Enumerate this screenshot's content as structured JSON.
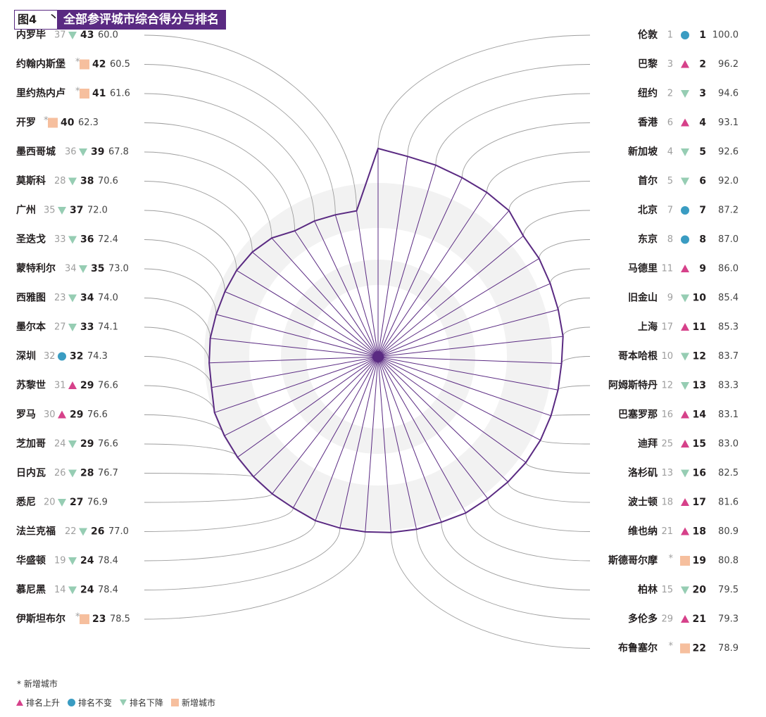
{
  "header": {
    "fig_label": "图4",
    "fig_mark": "丶",
    "title": "全部参评城市综合得分与排名"
  },
  "footnote": "* 新增城市",
  "legend": [
    {
      "key": "up",
      "label": "排名上升"
    },
    {
      "key": "same",
      "label": "排名不变"
    },
    {
      "key": "down",
      "label": "排名下降"
    },
    {
      "key": "new",
      "label": "新增城市"
    }
  ],
  "colors": {
    "up": "#d6418a",
    "same": "#3a9cc2",
    "down": "#96cdb3",
    "new": "#f6bf9e",
    "spoke": "#5a2a82",
    "leader": "#9e9e9e",
    "ring": "#f2f2f2",
    "header": "#5a2a82"
  },
  "chart_data": {
    "type": "radar",
    "title": "全部参评城市综合得分与排名",
    "columns": [
      "城市",
      "上期排名",
      "变化",
      "本期排名",
      "综合得分"
    ],
    "cities": [
      {
        "name": "伦敦",
        "prev": "1",
        "change": "same",
        "rank": "1",
        "score": 100.0
      },
      {
        "name": "巴黎",
        "prev": "3",
        "change": "up",
        "rank": "2",
        "score": 96.2
      },
      {
        "name": "纽约",
        "prev": "2",
        "change": "down",
        "rank": "3",
        "score": 94.6
      },
      {
        "name": "香港",
        "prev": "6",
        "change": "up",
        "rank": "4",
        "score": 93.1
      },
      {
        "name": "新加坡",
        "prev": "4",
        "change": "down",
        "rank": "5",
        "score": 92.6
      },
      {
        "name": "首尔",
        "prev": "5",
        "change": "down",
        "rank": "6",
        "score": 92.0
      },
      {
        "name": "北京",
        "prev": "7",
        "change": "same",
        "rank": "7",
        "score": 87.2
      },
      {
        "name": "东京",
        "prev": "8",
        "change": "same",
        "rank": "8",
        "score": 87.0
      },
      {
        "name": "马德里",
        "prev": "11",
        "change": "up",
        "rank": "9",
        "score": 86.0
      },
      {
        "name": "旧金山",
        "prev": "9",
        "change": "down",
        "rank": "10",
        "score": 85.4
      },
      {
        "name": "上海",
        "prev": "17",
        "change": "up",
        "rank": "11",
        "score": 85.3
      },
      {
        "name": "哥本哈根",
        "prev": "10",
        "change": "down",
        "rank": "12",
        "score": 83.7
      },
      {
        "name": "阿姆斯特丹",
        "prev": "12",
        "change": "down",
        "rank": "13",
        "score": 83.3
      },
      {
        "name": "巴塞罗那",
        "prev": "16",
        "change": "up",
        "rank": "14",
        "score": 83.1
      },
      {
        "name": "迪拜",
        "prev": "25",
        "change": "up",
        "rank": "15",
        "score": 83.0
      },
      {
        "name": "洛杉矶",
        "prev": "13",
        "change": "down",
        "rank": "16",
        "score": 82.5
      },
      {
        "name": "波士顿",
        "prev": "18",
        "change": "up",
        "rank": "17",
        "score": 81.6
      },
      {
        "name": "维也纳",
        "prev": "21",
        "change": "up",
        "rank": "18",
        "score": 80.9
      },
      {
        "name": "斯德哥尔摩",
        "prev": "*",
        "change": "new",
        "rank": "19",
        "score": 80.8
      },
      {
        "name": "柏林",
        "prev": "15",
        "change": "down",
        "rank": "20",
        "score": 79.5
      },
      {
        "name": "多伦多",
        "prev": "29",
        "change": "up",
        "rank": "21",
        "score": 79.3
      },
      {
        "name": "布鲁塞尔",
        "prev": "*",
        "change": "new",
        "rank": "22",
        "score": 78.9
      },
      {
        "name": "伊斯坦布尔",
        "prev": "*",
        "change": "new",
        "rank": "23",
        "score": 78.5
      },
      {
        "name": "慕尼黑",
        "prev": "14",
        "change": "down",
        "rank": "24",
        "score": 78.4
      },
      {
        "name": "华盛顿",
        "prev": "19",
        "change": "down",
        "rank": "24",
        "score": 78.4
      },
      {
        "name": "法兰克福",
        "prev": "22",
        "change": "down",
        "rank": "26",
        "score": 77.0
      },
      {
        "name": "悉尼",
        "prev": "20",
        "change": "down",
        "rank": "27",
        "score": 76.9
      },
      {
        "name": "日内瓦",
        "prev": "26",
        "change": "down",
        "rank": "28",
        "score": 76.7
      },
      {
        "name": "芝加哥",
        "prev": "24",
        "change": "down",
        "rank": "29",
        "score": 76.6
      },
      {
        "name": "罗马",
        "prev": "30",
        "change": "up",
        "rank": "29",
        "score": 76.6
      },
      {
        "name": "苏黎世",
        "prev": "31",
        "change": "up",
        "rank": "29",
        "score": 76.6
      },
      {
        "name": "深圳",
        "prev": "32",
        "change": "same",
        "rank": "32",
        "score": 74.3
      },
      {
        "name": "墨尔本",
        "prev": "27",
        "change": "down",
        "rank": "33",
        "score": 74.1
      },
      {
        "name": "西雅图",
        "prev": "23",
        "change": "down",
        "rank": "34",
        "score": 74.0
      },
      {
        "name": "蒙特利尔",
        "prev": "34",
        "change": "down",
        "rank": "35",
        "score": 73.0
      },
      {
        "name": "圣迭戈",
        "prev": "33",
        "change": "down",
        "rank": "36",
        "score": 72.4
      },
      {
        "name": "广州",
        "prev": "35",
        "change": "down",
        "rank": "37",
        "score": 72.0
      },
      {
        "name": "莫斯科",
        "prev": "28",
        "change": "down",
        "rank": "38",
        "score": 70.6
      },
      {
        "name": "墨西哥城",
        "prev": "36",
        "change": "down",
        "rank": "39",
        "score": 67.8
      },
      {
        "name": "开罗",
        "prev": "*",
        "change": "new",
        "rank": "40",
        "score": 62.3
      },
      {
        "name": "里约热内卢",
        "prev": "*",
        "change": "new",
        "rank": "41",
        "score": 61.6
      },
      {
        "name": "约翰内斯堡",
        "prev": "*",
        "change": "new",
        "rank": "42",
        "score": 60.5
      },
      {
        "name": "内罗毕",
        "prev": "37",
        "change": "down",
        "rank": "43",
        "score": 60.0
      }
    ]
  }
}
